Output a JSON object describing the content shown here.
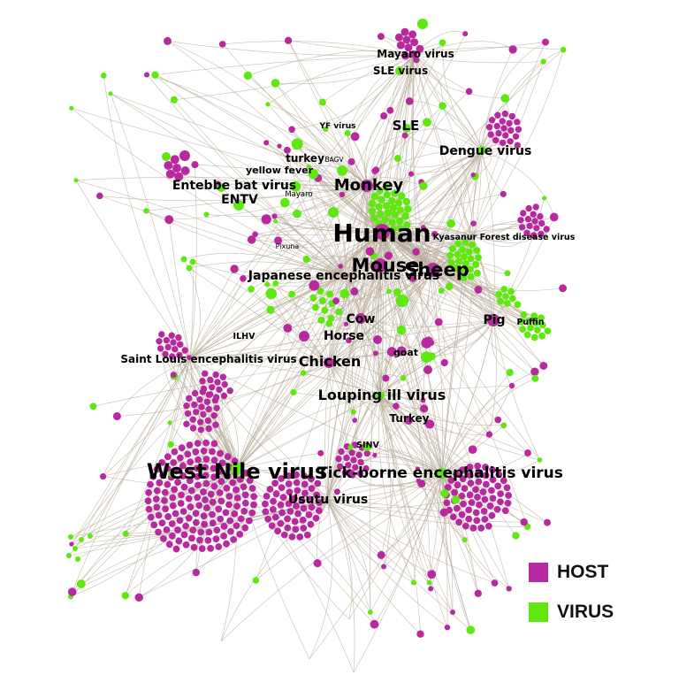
{
  "colors": {
    "host": "#b8289e",
    "virus": "#5ee80e",
    "edge": "#b8ad9a"
  },
  "legend": [
    {
      "label": "HOST",
      "color": "#b8289e"
    },
    {
      "label": "VIRUS",
      "color": "#5ee80e"
    }
  ],
  "labels": [
    "Mayaro virus",
    "SLE virus",
    "YF virus",
    "SLE",
    "Dengue virus",
    "turkey",
    "BAGV",
    "yellow fever",
    "Entebbe bat virus",
    "Monkey",
    "ENTV",
    "Mayaro",
    "Human",
    "Kyasanur Forest disease virus",
    "Pixuna",
    "Mouse",
    "Sheep",
    "Japanese encephalitis virus",
    "Pig",
    "Puffin",
    "Cow",
    "ILHV",
    "Horse",
    "goat",
    "Saint Louis encephalitis virus",
    "Chicken",
    "Louping ill virus",
    "Turkey",
    "SINV",
    "West Nile virus",
    "Tick-borne encephalitis virus",
    "Usutu virus"
  ]
}
